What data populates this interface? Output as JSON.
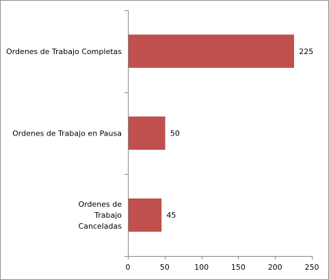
{
  "chart_data": {
    "type": "bar",
    "orientation": "horizontal",
    "categories": [
      [
        "Ordenes de Trabajo Completas"
      ],
      [
        "Ordenes de Trabajo en Pausa"
      ],
      [
        "Ordenes de",
        "Trabajo",
        "Canceladas"
      ]
    ],
    "values": [
      225,
      50,
      45
    ],
    "data_labels": [
      "225",
      "50",
      "45"
    ],
    "xlim": [
      0,
      250
    ],
    "xticks": [
      0,
      50,
      100,
      150,
      200,
      250
    ],
    "title": "",
    "xlabel": "",
    "ylabel": "",
    "grid": false,
    "legend": "none",
    "bar_color": "#c0504d",
    "axis_color": "#868686"
  }
}
